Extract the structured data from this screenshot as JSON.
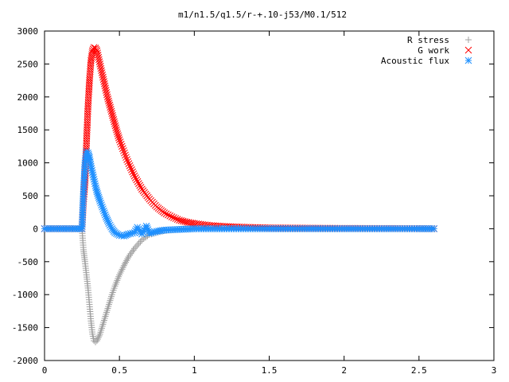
{
  "chart_data": {
    "type": "scatter",
    "title": "m1/n1.5/q1.5/r-+.10-j53/M0.1/512",
    "xlabel": "",
    "ylabel": "",
    "xlim": [
      0,
      3
    ],
    "ylim": [
      -2000,
      3000
    ],
    "x_ticks": [
      0,
      0.5,
      1,
      1.5,
      2,
      2.5,
      3
    ],
    "x_tick_labels": [
      "0",
      "0.5",
      "1",
      "1.5",
      "2",
      "2.5",
      "3"
    ],
    "y_ticks": [
      -2000,
      -1500,
      -1000,
      -500,
      0,
      500,
      1000,
      1500,
      2000,
      2500,
      3000
    ],
    "y_tick_labels": [
      "-2000",
      "-1500",
      "-1000",
      "-500",
      "0",
      "500",
      "1000",
      "1500",
      "2000",
      "2500",
      "3000"
    ],
    "grid": false,
    "legend_position": "top-right",
    "series": [
      {
        "name": "R stress",
        "marker": "plus",
        "color": "#a0a0a0",
        "x": [
          0.0,
          0.1,
          0.2,
          0.25,
          0.26,
          0.27,
          0.28,
          0.29,
          0.3,
          0.31,
          0.32,
          0.33,
          0.34,
          0.35,
          0.37,
          0.39,
          0.41,
          0.43,
          0.45,
          0.47,
          0.5,
          0.53,
          0.56,
          0.6,
          0.65,
          0.7,
          0.8,
          0.9,
          1.0,
          1.2,
          1.5,
          2.0,
          2.5,
          2.6
        ],
        "y": [
          0,
          0,
          0,
          0,
          -320,
          -500,
          -700,
          -900,
          -1150,
          -1400,
          -1600,
          -1700,
          -1720,
          -1700,
          -1600,
          -1450,
          -1300,
          -1150,
          -1000,
          -870,
          -700,
          -560,
          -430,
          -300,
          -170,
          -90,
          -30,
          -10,
          0,
          0,
          0,
          0,
          0,
          0
        ]
      },
      {
        "name": "G work",
        "marker": "cross",
        "color": "#ff0000",
        "x": [
          0.0,
          0.1,
          0.2,
          0.25,
          0.26,
          0.27,
          0.28,
          0.29,
          0.3,
          0.31,
          0.32,
          0.33,
          0.34,
          0.35,
          0.36,
          0.38,
          0.4,
          0.42,
          0.45,
          0.48,
          0.5,
          0.55,
          0.6,
          0.65,
          0.7,
          0.75,
          0.8,
          0.85,
          0.9,
          0.95,
          1.0,
          1.1,
          1.2,
          1.3,
          1.5,
          2.0,
          2.5,
          2.6
        ],
        "y": [
          0,
          0,
          0,
          0,
          420,
          700,
          1300,
          1850,
          2250,
          2550,
          2700,
          2750,
          2740,
          2700,
          2600,
          2400,
          2200,
          2000,
          1750,
          1500,
          1350,
          1050,
          800,
          600,
          450,
          330,
          240,
          180,
          130,
          100,
          80,
          50,
          35,
          25,
          12,
          5,
          2,
          0
        ]
      },
      {
        "name": "Acoustic flux",
        "marker": "star",
        "color": "#1e90ff",
        "x": [
          0.0,
          0.1,
          0.2,
          0.25,
          0.26,
          0.27,
          0.28,
          0.29,
          0.3,
          0.31,
          0.32,
          0.33,
          0.34,
          0.35,
          0.37,
          0.39,
          0.41,
          0.43,
          0.45,
          0.47,
          0.5,
          0.53,
          0.56,
          0.6,
          0.62,
          0.65,
          0.68,
          0.7,
          0.75,
          0.8,
          0.9,
          1.0,
          1.2,
          1.5,
          2.0,
          2.5,
          2.6
        ],
        "y": [
          0,
          0,
          0,
          0,
          560,
          1000,
          1170,
          1150,
          1080,
          950,
          850,
          750,
          650,
          560,
          420,
          300,
          180,
          80,
          0,
          -60,
          -100,
          -110,
          -80,
          -60,
          20,
          -80,
          40,
          -70,
          -40,
          -20,
          -10,
          0,
          0,
          0,
          0,
          0,
          0
        ]
      }
    ]
  }
}
